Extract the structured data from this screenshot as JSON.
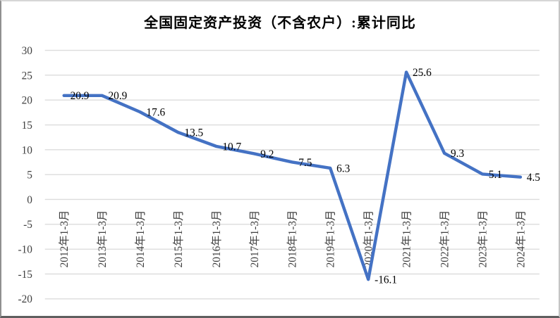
{
  "chart_data": {
    "type": "line",
    "title": "全国固定资产投资（不含农户）:累计同比",
    "categories": [
      "2012年1-3月",
      "2013年1-3月",
      "2014年1-3月",
      "2015年1-3月",
      "2016年1-3月",
      "2017年1-3月",
      "2018年1-3月",
      "2019年1-3月",
      "2020年1-3月",
      "2021年1-3月",
      "2022年1-3月",
      "2023年1-3月",
      "2024年1-3月"
    ],
    "values": [
      20.9,
      20.9,
      17.6,
      13.5,
      10.7,
      9.2,
      7.5,
      6.3,
      -16.1,
      25.6,
      9.3,
      5.1,
      4.5
    ],
    "xlabel": "",
    "ylabel": "",
    "ylim": [
      -20,
      30
    ],
    "ytick_step": 5,
    "grid": true,
    "legend_position": "none",
    "data_labels_visible": true,
    "colors": {
      "line": "#4472C4",
      "gridline": "#dcdcdc",
      "axis_text": "#3f3f3f",
      "data_label_text": "#000000",
      "title_text": "#000000",
      "background": "#ffffff"
    }
  }
}
